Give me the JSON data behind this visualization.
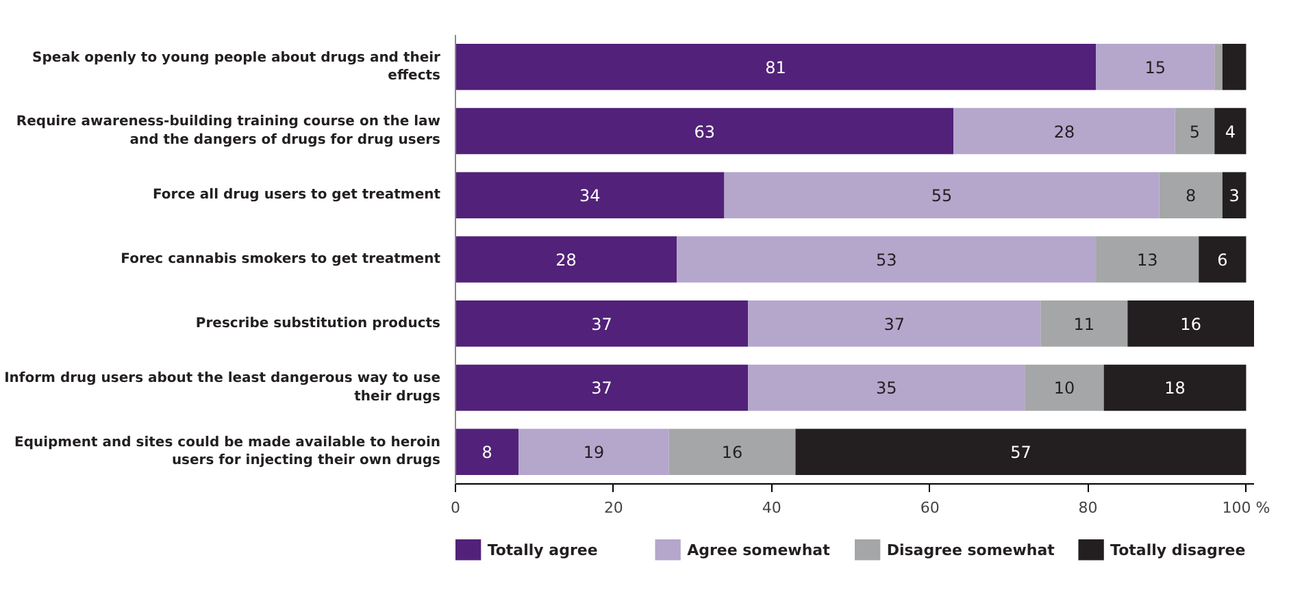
{
  "chart_data": {
    "type": "bar",
    "orientation": "horizontal",
    "stacked": true,
    "categories": [
      "Speak openly to young people about drugs and their effects",
      "Require awareness-building training course on the law and the dangers of drugs for drug users",
      "Force all drug users to get treatment",
      "Forec cannabis smokers to get treatment",
      "Prescribe substitution products",
      "Inform drug users about the least dangerous way to use their drugs",
      "Equipment and sites could be made available to heroin users for injecting their own drugs"
    ],
    "series": [
      {
        "name": "Totally agree",
        "color": "#522179",
        "values": [
          81,
          63,
          34,
          28,
          37,
          37,
          8
        ],
        "value_labels": [
          "81",
          "63",
          "34",
          "28",
          "37",
          "37",
          "8"
        ]
      },
      {
        "name": "Agree somewhat",
        "color": "#b5a6cc",
        "values": [
          15,
          28,
          55,
          53,
          37,
          35,
          19
        ],
        "value_labels": [
          "15",
          "28",
          "55",
          "53",
          "37",
          "35",
          "19"
        ]
      },
      {
        "name": "Disagree somewhat",
        "color": "#a5a6a8",
        "values": [
          1,
          5,
          8,
          13,
          11,
          10,
          16
        ],
        "value_labels": [
          null,
          "5",
          "8",
          "13",
          "11",
          "10",
          "16"
        ]
      },
      {
        "name": "Totally disagree",
        "color": "#231f20",
        "values": [
          3,
          4,
          3,
          6,
          16,
          18,
          57
        ],
        "value_labels": [
          null,
          "4",
          "3",
          "6",
          "16",
          "18",
          "57"
        ]
      }
    ],
    "xlim": [
      0,
      101
    ],
    "xticks": [
      0,
      20,
      40,
      60,
      80,
      {
        "value": 100,
        "label": "100 %"
      }
    ],
    "grid": false,
    "legend": "bottom"
  }
}
